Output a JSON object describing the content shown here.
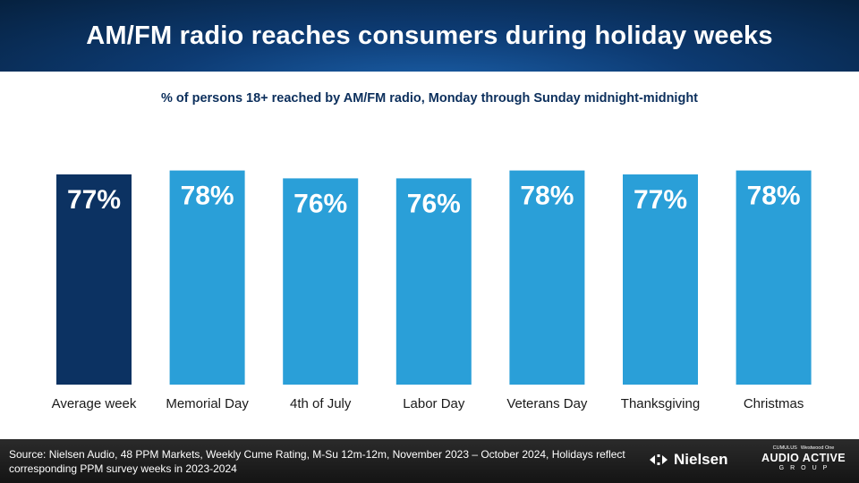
{
  "header": {
    "title": "AM/FM radio reaches consumers during holiday weeks"
  },
  "subtitle": "% of persons 18+ reached by AM/FM radio, Monday through Sunday midnight-midnight",
  "chart_data": {
    "type": "bar",
    "categories": [
      "Average week",
      "Memorial Day",
      "4th of July",
      "Labor Day",
      "Veterans Day",
      "Thanksgiving",
      "Christmas"
    ],
    "values": [
      77,
      78,
      76,
      76,
      78,
      77,
      78
    ],
    "labels": [
      "77%",
      "78%",
      "76%",
      "76%",
      "78%",
      "77%",
      "78%"
    ],
    "colors": [
      "#0c3262",
      "#2a9fd8",
      "#2a9fd8",
      "#2a9fd8",
      "#2a9fd8",
      "#2a9fd8",
      "#2a9fd8"
    ],
    "value_label_color": "#ffffff",
    "category_label_color": "#1a1a1a",
    "title": "",
    "xlabel": "",
    "ylabel": "",
    "grid": false,
    "legend": "none"
  },
  "footer": {
    "source": "Source: Nielsen Audio, 48 PPM Markets, Weekly Cume Rating, M-Su  12m-12m, November 2023 – October 2024, Holidays reflect corresponding PPM survey weeks in 2023-2024",
    "nielsen_logo_text": "Nielsen",
    "aag_cumulus": "CUMULUS",
    "aag_westwood": "Westwood One",
    "aag_main": "AUDIO ACTIVE",
    "aag_sub": "GROUP"
  }
}
